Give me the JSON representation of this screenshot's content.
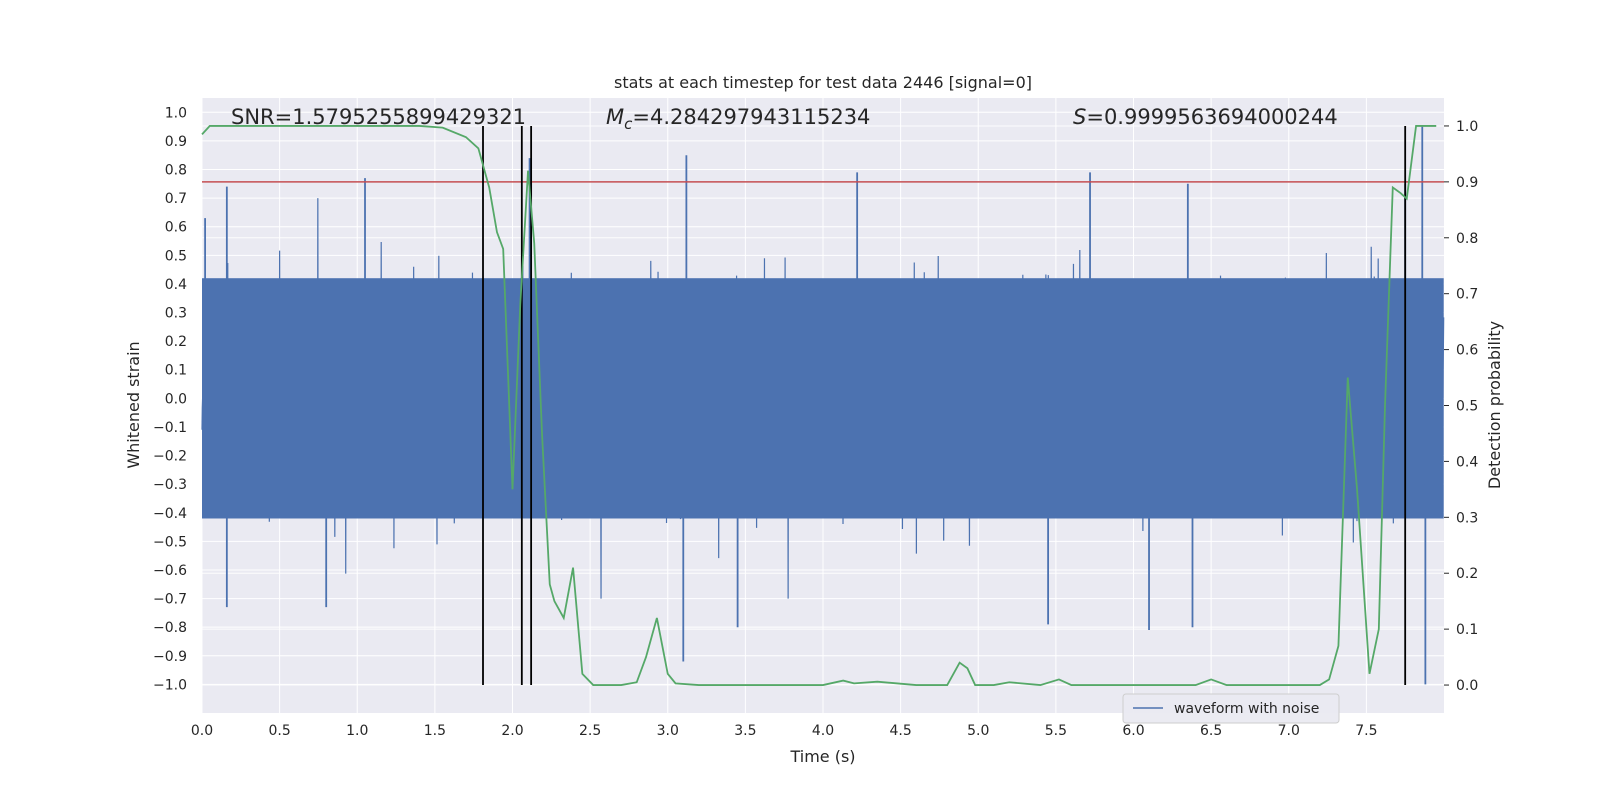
{
  "chart_data": {
    "type": "line",
    "title": "stats at each timestep for test data 2446 [signal=0]",
    "xlabel": "Time (s)",
    "ylabel": "Whitened strain",
    "y2label": "Detection probability",
    "xlim": [
      0.0,
      8.0
    ],
    "ylim": [
      -1.1,
      1.05
    ],
    "y2lim": [
      -0.05,
      1.05
    ],
    "xticks": [
      0.0,
      0.5,
      1.0,
      1.5,
      2.0,
      2.5,
      3.0,
      3.5,
      4.0,
      4.5,
      5.0,
      5.5,
      6.0,
      6.5,
      7.0,
      7.5
    ],
    "xtick_labels": [
      "0.0",
      "0.5",
      "1.0",
      "1.5",
      "2.0",
      "2.5",
      "3.0",
      "3.5",
      "4.0",
      "4.5",
      "5.0",
      "5.5",
      "6.0",
      "6.5",
      "7.0",
      "7.5"
    ],
    "yticks": [
      -1.0,
      -0.9,
      -0.8,
      -0.7,
      -0.6,
      -0.5,
      -0.4,
      -0.3,
      -0.2,
      -0.1,
      0.0,
      0.1,
      0.2,
      0.3,
      0.4,
      0.5,
      0.6,
      0.7,
      0.8,
      0.9,
      1.0
    ],
    "ytick_labels": [
      "−1.0",
      "−0.9",
      "−0.8",
      "−0.7",
      "−0.6",
      "−0.5",
      "−0.4",
      "−0.3",
      "−0.2",
      "−0.1",
      "0.0",
      "0.1",
      "0.2",
      "0.3",
      "0.4",
      "0.5",
      "0.6",
      "0.7",
      "0.8",
      "0.9",
      "1.0"
    ],
    "y2ticks": [
      0.0,
      0.1,
      0.2,
      0.3,
      0.4,
      0.5,
      0.6,
      0.7,
      0.8,
      0.9,
      1.0
    ],
    "y2tick_labels": [
      "0.0",
      "0.1",
      "0.2",
      "0.3",
      "0.4",
      "0.5",
      "0.6",
      "0.7",
      "0.8",
      "0.9",
      "1.0"
    ],
    "grid": true,
    "annotations": {
      "snr": "SNR=1.5795255899429321",
      "mc_symbol": "M",
      "mc_sub": "c",
      "mc_value": "=4.284297943115234",
      "s_symbol": "S",
      "s_value": "=0.9999563694000244"
    },
    "legend": {
      "label": "waveform with noise",
      "position": "lower-right"
    },
    "threshold": {
      "value": 0.9,
      "axis": "y2",
      "color": "#c44e52"
    },
    "vertical_markers": [
      1.81,
      2.06,
      2.12,
      7.75
    ],
    "waveform": {
      "name": "waveform with noise",
      "color": "#4c72b0",
      "n_samples": 4096,
      "typical_range": [
        -0.42,
        0.42
      ],
      "peak_max": 0.95,
      "peak_min": -1.0,
      "notable_spikes": [
        {
          "t": 3.12,
          "v": 0.85
        },
        {
          "t": 3.1,
          "v": -0.92
        },
        {
          "t": 4.22,
          "v": 0.79
        },
        {
          "t": 5.72,
          "v": 0.79
        },
        {
          "t": 2.11,
          "v": 0.84
        },
        {
          "t": 7.86,
          "v": 0.95
        },
        {
          "t": 7.88,
          "v": -1.0
        },
        {
          "t": 0.16,
          "v": 0.74
        },
        {
          "t": 1.05,
          "v": 0.77
        },
        {
          "t": 0.8,
          "v": -0.73
        },
        {
          "t": 0.16,
          "v": -0.73
        },
        {
          "t": 3.45,
          "v": -0.8
        },
        {
          "t": 5.45,
          "v": -0.79
        },
        {
          "t": 6.1,
          "v": -0.81
        },
        {
          "t": 6.38,
          "v": -0.8
        },
        {
          "t": 7.75,
          "v": 0.75
        },
        {
          "t": 6.35,
          "v": 0.75
        },
        {
          "t": 0.02,
          "v": 0.63
        }
      ]
    },
    "probability": {
      "name": "detection probability",
      "color": "#55a868",
      "x": [
        0.0,
        0.05,
        0.1,
        0.3,
        0.6,
        1.0,
        1.4,
        1.55,
        1.7,
        1.78,
        1.85,
        1.9,
        1.94,
        2.0,
        2.05,
        2.1,
        2.14,
        2.19,
        2.24,
        2.27,
        2.33,
        2.39,
        2.45,
        2.52,
        2.7,
        2.8,
        2.86,
        2.93,
        3.0,
        3.05,
        3.2,
        3.6,
        4.0,
        4.13,
        4.2,
        4.35,
        4.6,
        4.8,
        4.88,
        4.93,
        4.98,
        5.1,
        5.2,
        5.4,
        5.52,
        5.6,
        5.8,
        6.4,
        6.5,
        6.6,
        7.0,
        7.2,
        7.26,
        7.32,
        7.38,
        7.44,
        7.52,
        7.58,
        7.62,
        7.67,
        7.72,
        7.76,
        7.82,
        7.86,
        7.95
      ],
      "y": [
        0.985,
        1.0,
        1.0,
        1.0,
        1.0,
        1.0,
        1.0,
        0.997,
        0.98,
        0.96,
        0.89,
        0.81,
        0.78,
        0.35,
        0.68,
        0.92,
        0.79,
        0.45,
        0.18,
        0.15,
        0.12,
        0.21,
        0.02,
        0.0,
        0.0,
        0.005,
        0.05,
        0.12,
        0.02,
        0.003,
        0.0,
        0.0,
        0.0,
        0.008,
        0.003,
        0.006,
        0.0,
        0.0,
        0.04,
        0.03,
        0.0,
        0.0,
        0.005,
        0.0,
        0.01,
        0.0,
        0.0,
        0.0,
        0.01,
        0.0,
        0.0,
        0.0,
        0.01,
        0.07,
        0.55,
        0.35,
        0.02,
        0.1,
        0.5,
        0.89,
        0.88,
        0.87,
        1.0,
        1.0,
        1.0
      ]
    }
  }
}
